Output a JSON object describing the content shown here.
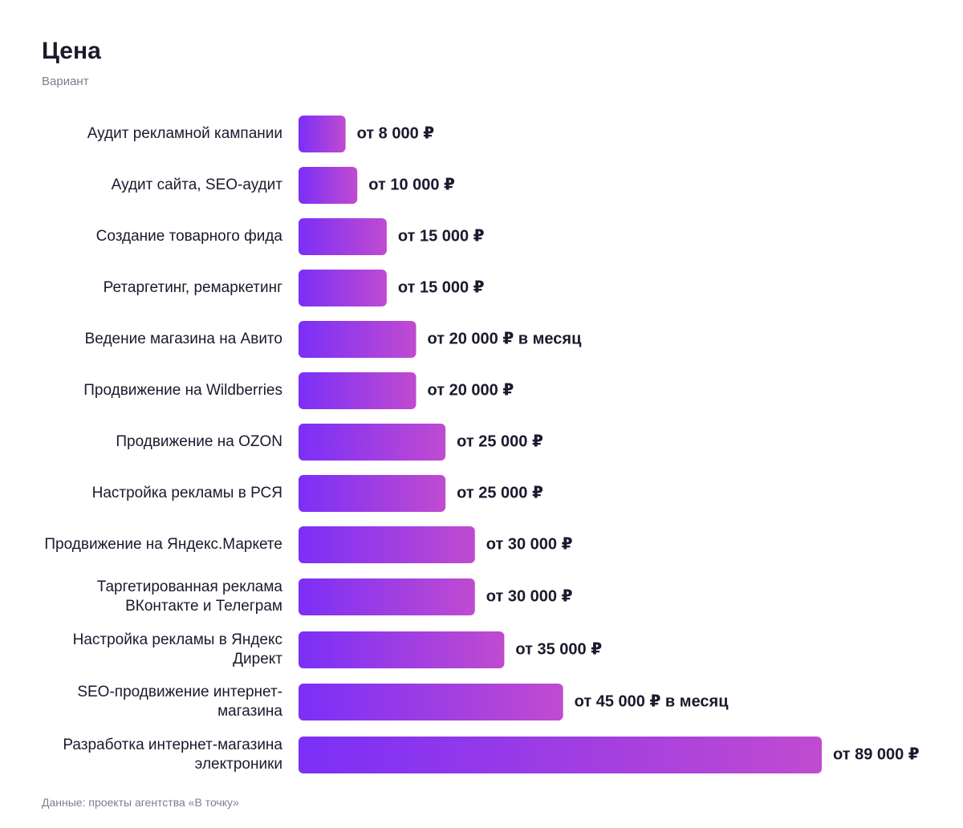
{
  "chart_data": {
    "type": "bar",
    "orientation": "horizontal",
    "title": "Цена",
    "subtitle": "Вариант",
    "source": "Данные: проекты агентства «В точку»",
    "xlabel": "",
    "ylabel": "",
    "grid": false,
    "xlim": [
      0,
      89000
    ],
    "gradient": [
      "#7b2ff7",
      "#c04bd0"
    ],
    "categories": [
      "Аудит рекламной кампании",
      "Аудит сайта, SEO-аудит",
      "Создание товарного фида",
      "Ретаргетинг, ремаркетинг",
      "Ведение магазина на Авито",
      "Продвижение на Wildberries",
      "Продвижение на OZON",
      "Настройка рекламы в РСЯ",
      "Продвижение на Яндекс.Маркете",
      "Таргетированная реклама ВКонтакте и Телеграм",
      "Настройка рекламы в Яндекс Директ",
      "SEO-продвижение интернет-магазина",
      "Разработка интернет-магазина электроники"
    ],
    "values": [
      8000,
      10000,
      15000,
      15000,
      20000,
      20000,
      25000,
      25000,
      30000,
      30000,
      35000,
      45000,
      89000
    ],
    "value_labels": [
      "от 8 000 ₽",
      "от 10 000 ₽",
      "от 15 000 ₽",
      "от 15 000 ₽",
      "от 20 000 ₽ в месяц",
      "от 20 000 ₽",
      "от 25 000 ₽",
      "от 25 000 ₽",
      "от 30 000 ₽",
      "от 30 000 ₽",
      "от 35 000 ₽",
      "от 45 000 ₽ в месяц",
      "от 89 000 ₽"
    ]
  }
}
